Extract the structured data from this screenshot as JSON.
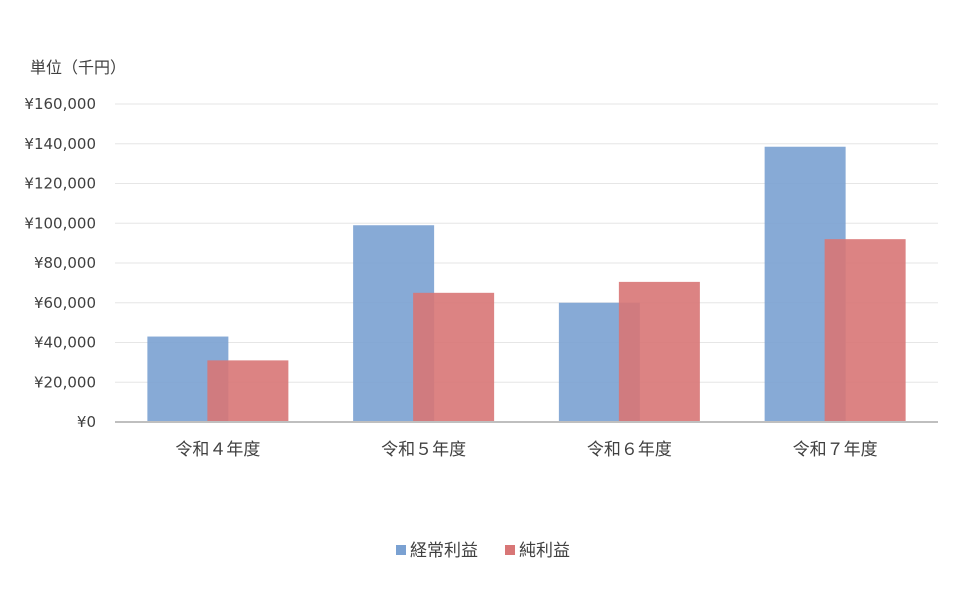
{
  "chart_data": {
    "type": "bar",
    "unit_label": "単位（千円）",
    "categories": [
      "令和４年度",
      "令和５年度",
      "令和６年度",
      "令和７年度"
    ],
    "series": [
      {
        "name": "経常利益",
        "color": "#7aa1d2",
        "values": [
          43000,
          99000,
          60000,
          138500
        ]
      },
      {
        "name": "純利益",
        "color": "#d87676",
        "values": [
          31000,
          65000,
          70500,
          92000
        ]
      }
    ],
    "ylim": [
      0,
      160000
    ],
    "y_ticks": [
      0,
      20000,
      40000,
      60000,
      80000,
      100000,
      120000,
      140000,
      160000
    ],
    "y_tick_labels": [
      "¥0",
      "¥20,000",
      "¥40,000",
      "¥60,000",
      "¥80,000",
      "¥100,000",
      "¥120,000",
      "¥140,000",
      "¥160,000"
    ],
    "grid": true,
    "legend_position": "bottom-center"
  }
}
